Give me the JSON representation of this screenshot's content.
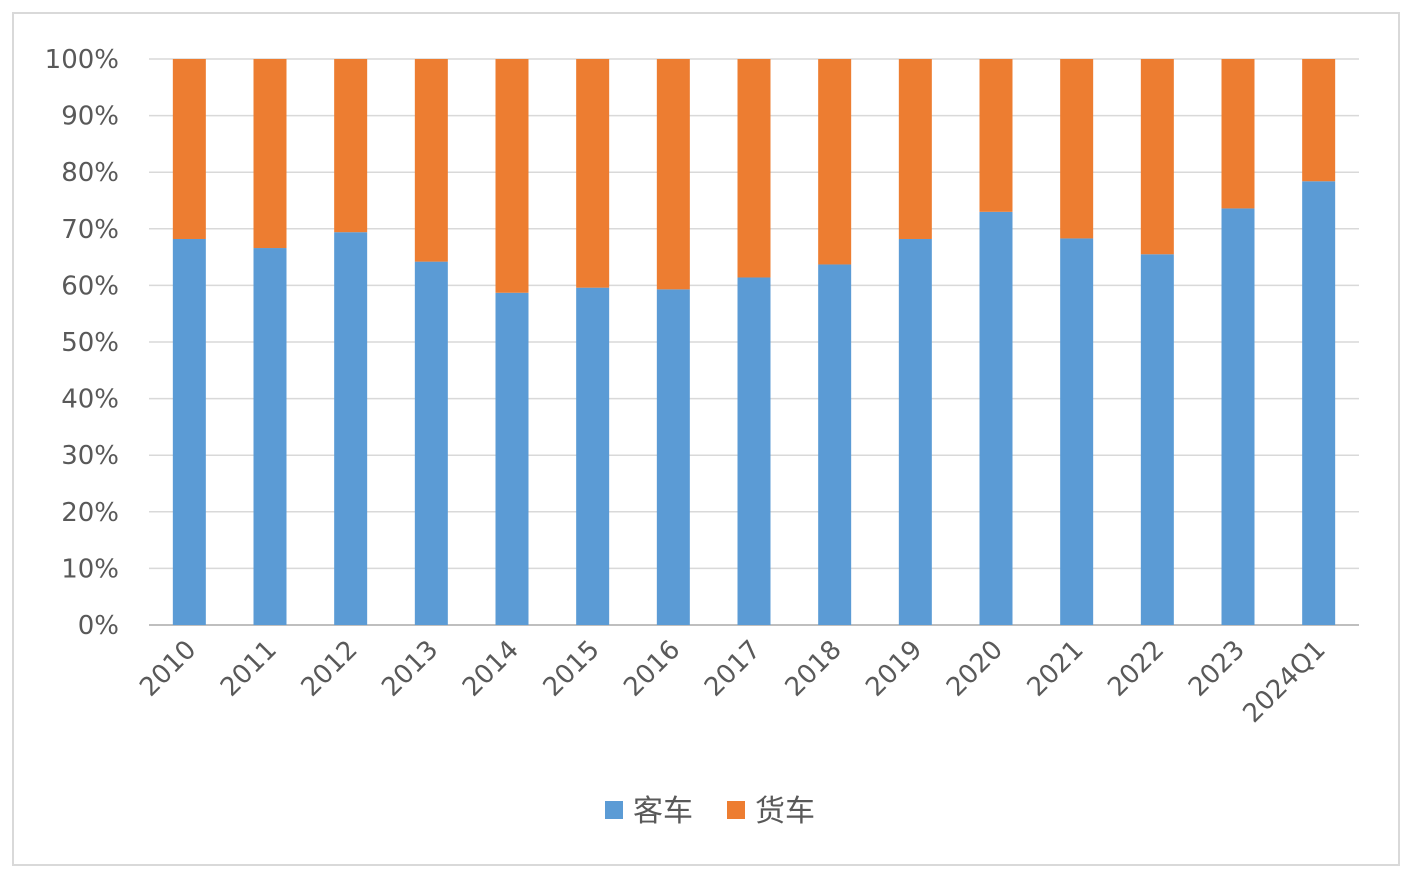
{
  "chart_data": {
    "type": "bar",
    "stacked": true,
    "percent": true,
    "categories": [
      "2010",
      "2011",
      "2012",
      "2013",
      "2014",
      "2015",
      "2016",
      "2017",
      "2018",
      "2019",
      "2020",
      "2021",
      "2022",
      "2023",
      "2024Q1"
    ],
    "series": [
      {
        "name": "客车",
        "color": "#5b9bd5",
        "values": [
          68.2,
          66.6,
          69.4,
          64.2,
          58.7,
          59.6,
          59.3,
          61.4,
          63.7,
          68.2,
          73.0,
          68.3,
          65.5,
          73.6,
          78.4
        ]
      },
      {
        "name": "货车",
        "color": "#ed7d31",
        "values": [
          31.8,
          33.4,
          30.6,
          35.8,
          41.3,
          40.4,
          40.7,
          38.6,
          36.3,
          31.8,
          27.0,
          31.7,
          34.5,
          26.4,
          21.6
        ]
      }
    ],
    "y_ticks": [
      "0%",
      "10%",
      "20%",
      "30%",
      "40%",
      "50%",
      "60%",
      "70%",
      "80%",
      "90%",
      "100%"
    ],
    "ylim": [
      0,
      100
    ],
    "grid": true,
    "gridline_color": "#d9d9d9",
    "legend_position": "bottom",
    "x_tick_rotation": "-45deg",
    "title": "",
    "xlabel": "",
    "ylabel": ""
  }
}
